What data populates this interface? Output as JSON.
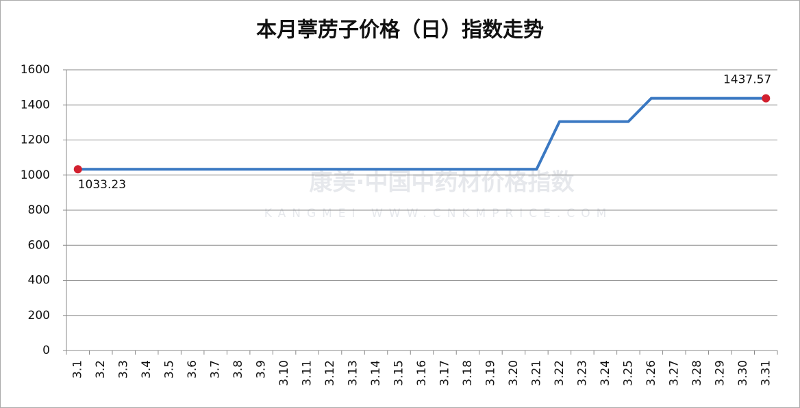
{
  "chart_data": {
    "type": "line",
    "title": "本月葶苈子价格（日）指数走势",
    "watermark": "康美·中国中药材价格指数",
    "watermark_sub": "KANGMEI WWW.CNKMPRICE.COM",
    "categories": [
      "3.1",
      "3.2",
      "3.3",
      "3.4",
      "3.5",
      "3.6",
      "3.7",
      "3.8",
      "3.9",
      "3.10",
      "3.11",
      "3.12",
      "3.13",
      "3.14",
      "3.15",
      "3.16",
      "3.17",
      "3.18",
      "3.19",
      "3.20",
      "3.21",
      "3.22",
      "3.23",
      "3.24",
      "3.25",
      "3.26",
      "3.27",
      "3.28",
      "3.29",
      "3.30",
      "3.31"
    ],
    "values": [
      1033.23,
      1033.23,
      1033.23,
      1033.23,
      1033.23,
      1033.23,
      1033.23,
      1033.23,
      1033.23,
      1033.23,
      1033.23,
      1033.23,
      1033.23,
      1033.23,
      1033.23,
      1033.23,
      1033.23,
      1033.23,
      1033.23,
      1033.23,
      1033.23,
      1305,
      1305,
      1305,
      1305,
      1437.57,
      1437.57,
      1437.57,
      1437.57,
      1437.57,
      1437.57
    ],
    "color": "#3a78c2",
    "marker_color": "#d2202f",
    "labeled_indices": [
      0,
      30
    ],
    "ylim": [
      0,
      1600
    ],
    "yticks": [
      0,
      200,
      400,
      600,
      800,
      1000,
      1200,
      1400,
      1600
    ],
    "grid": true
  }
}
